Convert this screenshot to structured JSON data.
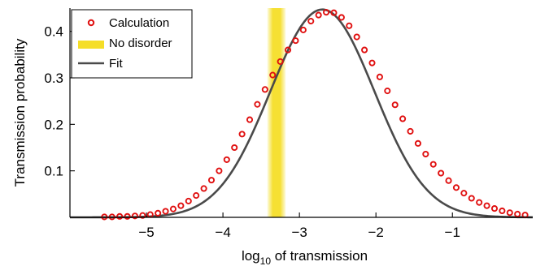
{
  "chart_data": {
    "type": "line",
    "xlabel": "log",
    "xlabel_sub": "10",
    "xlabel_rest": " of transmission",
    "ylabel": "Transmission probability",
    "xlim": [
      -6.0,
      0.05
    ],
    "ylim": [
      0,
      0.45
    ],
    "grid": false,
    "legend_position": "top-left",
    "x_ticks": [
      -5,
      -4,
      -3,
      -2,
      -1
    ],
    "x_tick_labels": [
      "−5",
      "−4",
      "−3",
      "−2",
      "−1"
    ],
    "y_ticks": [
      0.1,
      0.2,
      0.3,
      0.4
    ],
    "y_tick_labels": [
      "0.1",
      "0.2",
      "0.3",
      "0.4"
    ],
    "band": {
      "name": "No disorder",
      "x_range": [
        -3.42,
        -3.18
      ],
      "color": "#f5de28"
    },
    "series": [
      {
        "name": "Calculation",
        "style": "markers",
        "color": "#e01010",
        "x": [
          -5.55,
          -5.45,
          -5.35,
          -5.25,
          -5.15,
          -5.05,
          -4.95,
          -4.85,
          -4.75,
          -4.65,
          -4.55,
          -4.45,
          -4.35,
          -4.25,
          -4.15,
          -4.05,
          -3.95,
          -3.85,
          -3.75,
          -3.65,
          -3.55,
          -3.45,
          -3.35,
          -3.25,
          -3.15,
          -3.05,
          -2.95,
          -2.85,
          -2.75,
          -2.65,
          -2.55,
          -2.45,
          -2.35,
          -2.25,
          -2.15,
          -2.05,
          -1.95,
          -1.85,
          -1.75,
          -1.65,
          -1.55,
          -1.45,
          -1.35,
          -1.25,
          -1.15,
          -1.05,
          -0.95,
          -0.85,
          -0.75,
          -0.65,
          -0.55,
          -0.45,
          -0.35,
          -0.25,
          -0.15,
          -0.05
        ],
        "y": [
          0.001,
          0.001,
          0.002,
          0.002,
          0.003,
          0.004,
          0.006,
          0.009,
          0.013,
          0.018,
          0.025,
          0.035,
          0.047,
          0.062,
          0.08,
          0.1,
          0.124,
          0.15,
          0.179,
          0.21,
          0.243,
          0.275,
          0.306,
          0.335,
          0.36,
          0.38,
          0.403,
          0.422,
          0.435,
          0.441,
          0.44,
          0.43,
          0.412,
          0.388,
          0.36,
          0.332,
          0.302,
          0.272,
          0.242,
          0.212,
          0.185,
          0.159,
          0.136,
          0.114,
          0.095,
          0.079,
          0.064,
          0.052,
          0.041,
          0.032,
          0.025,
          0.019,
          0.014,
          0.01,
          0.007,
          0.005
        ]
      },
      {
        "name": "Fit",
        "style": "line",
        "color": "#4a4a4a",
        "mean": -2.7,
        "sigma": 0.68,
        "amplitude": 0.447,
        "x_range": [
          -6.0,
          0.05
        ]
      }
    ]
  }
}
